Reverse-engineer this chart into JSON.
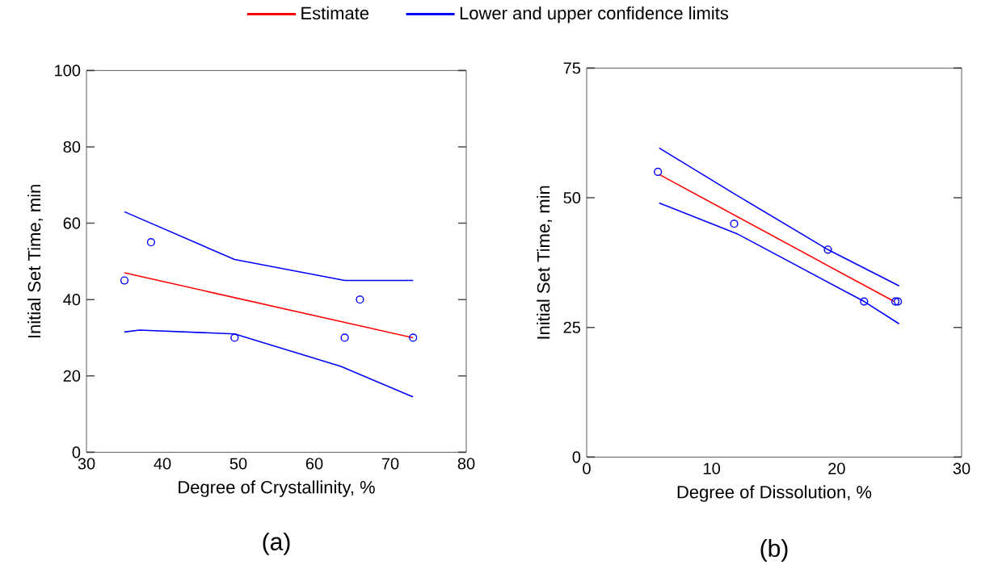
{
  "chart_data": [
    {
      "type": "line",
      "xlabel": "Degree of Crystallinity, %",
      "ylabel": "Initial Set Time, min",
      "annotations": [
        "(a)"
      ],
      "xlim": [
        30,
        80
      ],
      "xticks": [
        30,
        40,
        50,
        60,
        70,
        80
      ],
      "ylim": [
        0,
        100
      ],
      "yticks": [
        0,
        20,
        40,
        60,
        80,
        100
      ],
      "grid": false,
      "legend": "top",
      "line_style": "solid",
      "series": [
        {
          "name": "Estimate",
          "color": "#ff0000",
          "x": [
            35,
            73
          ],
          "values": [
            47,
            30
          ],
          "marker": "none"
        },
        {
          "name": "Lower and upper confidence limits",
          "color": "#0000ff",
          "x": [
            35,
            37,
            49.5,
            63.5,
            73
          ],
          "values": [
            31.5,
            32,
            31,
            22.5,
            14.5
          ],
          "marker": "none"
        },
        {
          "color": "#0000ff",
          "x": [
            35,
            49.5,
            64,
            73
          ],
          "values": [
            63,
            50.5,
            45,
            45
          ],
          "marker": "none"
        },
        {
          "type": "scatter",
          "color": "#0000ff",
          "x": [
            35,
            38.5,
            49.5,
            64,
            66,
            73
          ],
          "values": [
            45,
            55,
            30,
            30,
            40,
            30
          ],
          "marker": "circle"
        }
      ]
    },
    {
      "type": "line",
      "xlabel": "Degree of Dissolution, %",
      "ylabel": "Initial Set Time, min",
      "annotations": [
        "(b)"
      ],
      "xlim": [
        0,
        30
      ],
      "xticks": [
        0,
        10,
        20,
        30
      ],
      "ylim": [
        0,
        75
      ],
      "yticks": [
        0,
        25,
        50,
        75
      ],
      "grid": false,
      "line_style": "solid",
      "series": [
        {
          "color": "#ff0000",
          "x": [
            5.8,
            24.6
          ],
          "values": [
            54.5,
            30
          ],
          "marker": "none"
        },
        {
          "color": "#0000ff",
          "x": [
            5.8,
            12,
            19.3,
            25
          ],
          "values": [
            59.6,
            50.5,
            40,
            33
          ],
          "marker": "none"
        },
        {
          "color": "#0000ff",
          "x": [
            5.8,
            12,
            22.2,
            25
          ],
          "values": [
            49,
            43.1,
            30,
            25.7
          ],
          "marker": "none"
        },
        {
          "type": "scatter",
          "color": "#0000ff",
          "x": [
            5.7,
            11.8,
            19.3,
            22.2,
            24.7,
            24.9
          ],
          "values": [
            55,
            45,
            40,
            30,
            30,
            30
          ],
          "marker": "circle"
        }
      ]
    }
  ]
}
